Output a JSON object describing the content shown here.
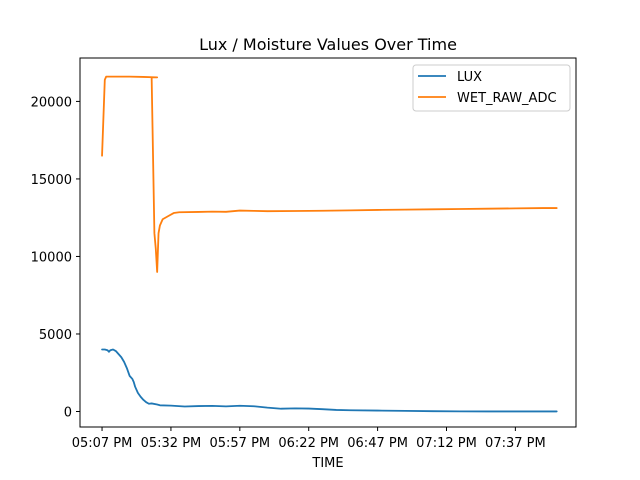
{
  "chart_data": {
    "type": "line",
    "title": "Lux / Moisture Values Over Time",
    "xlabel": "TIME",
    "ylabel": "",
    "x_tick_labels": [
      "05:07 PM",
      "05:32 PM",
      "05:57 PM",
      "06:22 PM",
      "06:47 PM",
      "07:12 PM",
      "07:37 PM"
    ],
    "x_tick_minutes": [
      0,
      25,
      50,
      75,
      100,
      125,
      150
    ],
    "xlim_minutes": [
      -8,
      172
    ],
    "ylim": [
      -1000,
      22800
    ],
    "yticks": [
      0,
      5000,
      10000,
      15000,
      20000
    ],
    "legend": {
      "placement": "top-right",
      "entries": [
        "LUX",
        "WET_RAW_ADC"
      ]
    },
    "grid": false,
    "series": [
      {
        "name": "LUX",
        "color": "#1f77b4",
        "x_minutes": [
          0,
          1,
          2,
          2.5,
          3,
          4,
          5,
          6,
          7,
          8,
          9,
          10,
          11,
          11.5,
          12,
          13,
          14,
          15,
          16,
          17,
          18,
          20,
          21,
          25,
          30,
          35,
          40,
          45,
          50,
          55,
          60,
          65,
          70,
          75,
          80,
          85,
          90,
          100,
          110,
          120,
          130,
          140,
          150,
          160,
          165
        ],
        "values": [
          4000,
          4000,
          3950,
          3850,
          3950,
          4000,
          3900,
          3700,
          3500,
          3200,
          2800,
          2300,
          2100,
          1900,
          1600,
          1200,
          950,
          750,
          600,
          500,
          520,
          450,
          400,
          380,
          320,
          350,
          360,
          330,
          370,
          340,
          250,
          180,
          200,
          190,
          150,
          100,
          80,
          60,
          40,
          20,
          10,
          5,
          5,
          5,
          5
        ]
      },
      {
        "name": "WET_RAW_ADC",
        "color": "#ff7f0e",
        "x_minutes": [
          0,
          1,
          1.5,
          5,
          10,
          15,
          20,
          18,
          19,
          19.5,
          20,
          20.5,
          21,
          22,
          24,
          26,
          28,
          35,
          40,
          45,
          50,
          55,
          60,
          70,
          80,
          90,
          100,
          110,
          120,
          130,
          140,
          150,
          160,
          165
        ],
        "values": [
          16500,
          21400,
          21600,
          21600,
          21600,
          21580,
          21550,
          21550,
          11500,
          10500,
          9000,
          11500,
          12000,
          12400,
          12600,
          12800,
          12850,
          12870,
          12890,
          12880,
          12960,
          12940,
          12920,
          12930,
          12950,
          12970,
          13000,
          13020,
          13040,
          13060,
          13080,
          13100,
          13120,
          13120
        ]
      }
    ]
  }
}
